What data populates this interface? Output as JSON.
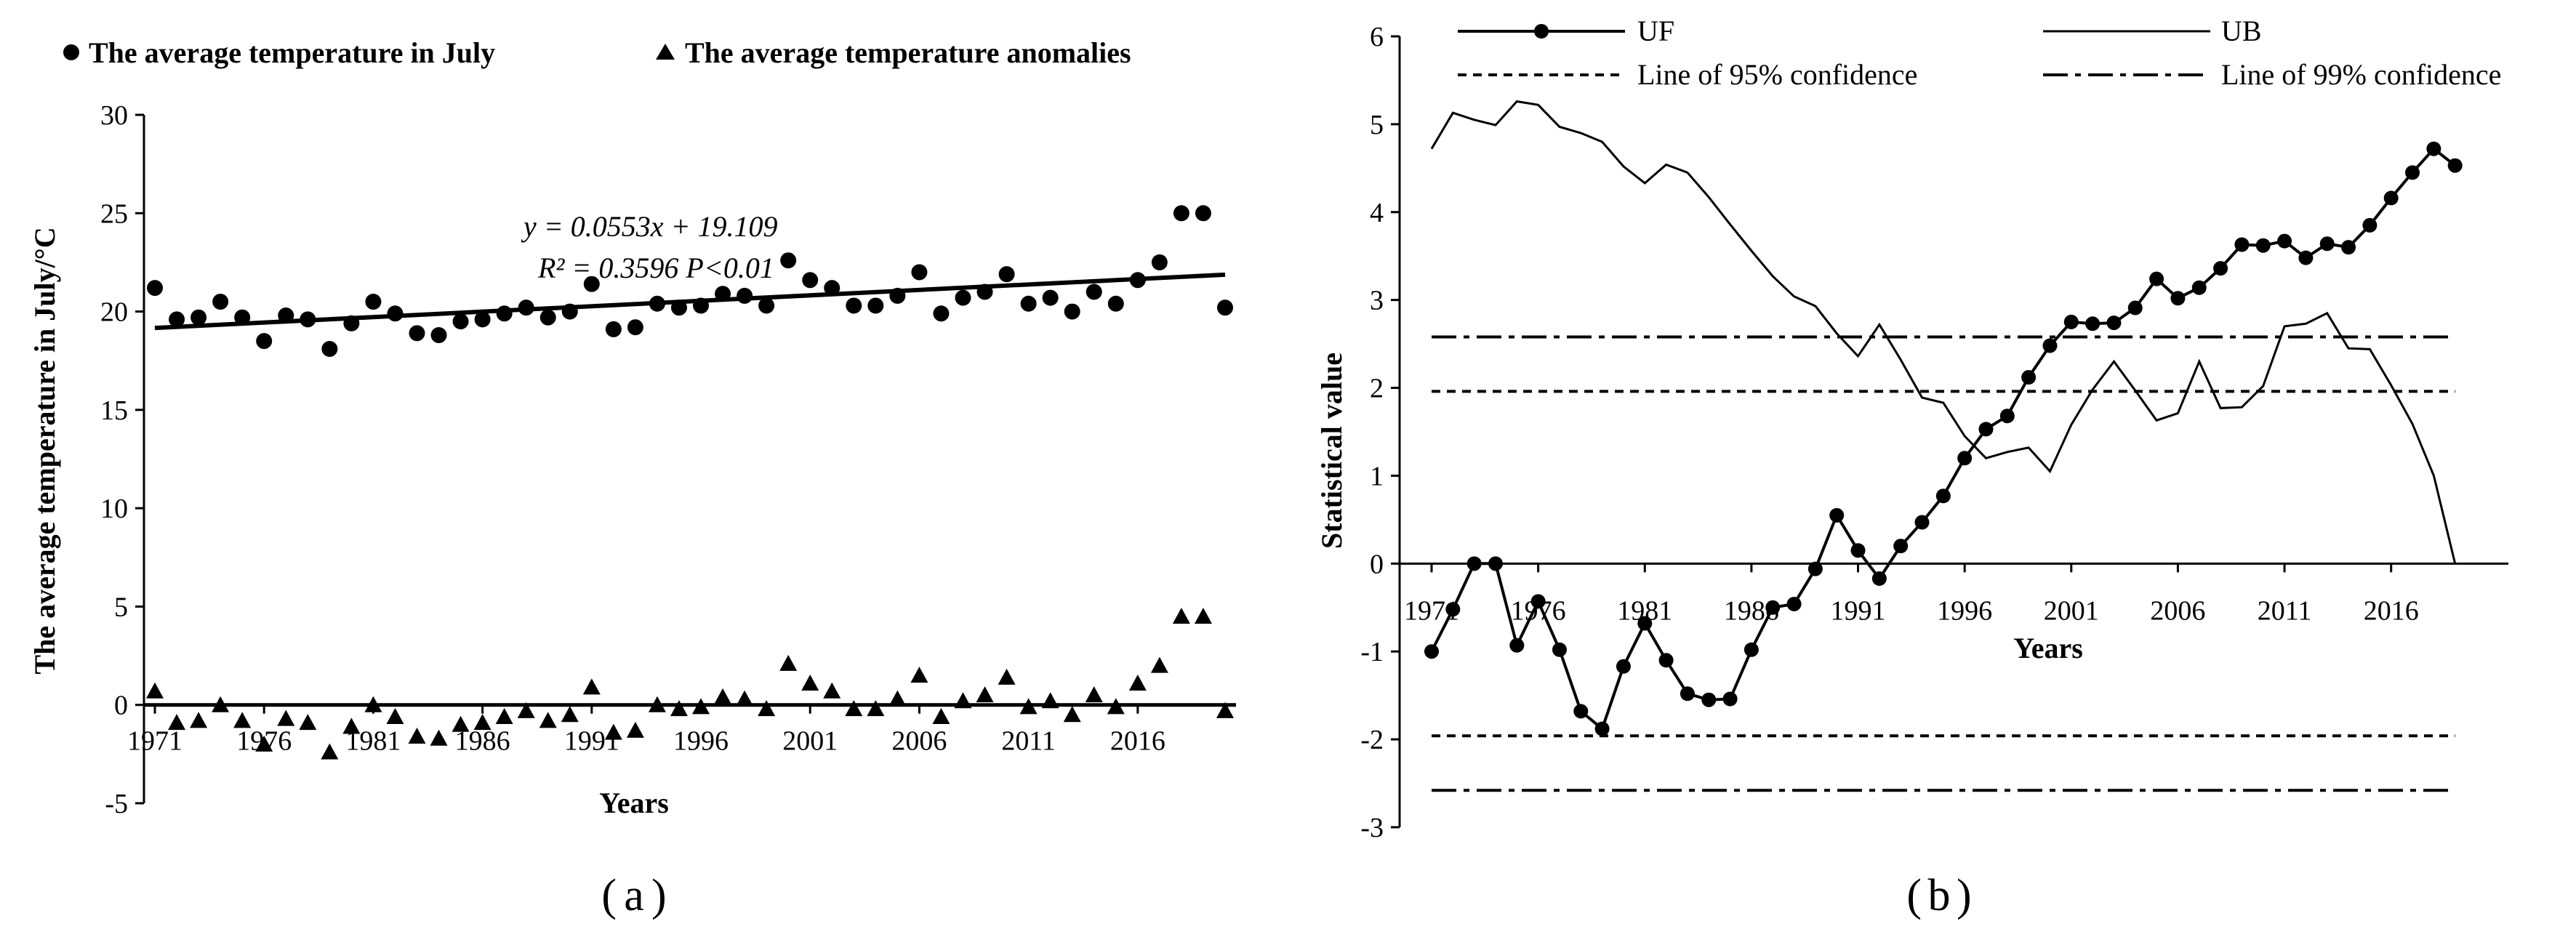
{
  "chart_data": [
    {
      "panel": "(a)",
      "panel_label_text": "a",
      "type": "scatter",
      "xlabel": "Years",
      "ylabel": "The average temperature in July/°C",
      "ylim": [
        -5,
        30
      ],
      "yticks": [
        "30",
        "25",
        "20",
        "15",
        "10",
        "5",
        "0",
        "-5"
      ],
      "ytick_values": [
        30,
        25,
        20,
        15,
        10,
        5,
        0,
        -5
      ],
      "xticks": [
        "1971",
        "1976",
        "1981",
        "1986",
        "1991",
        "1996",
        "2001",
        "2006",
        "2011",
        "2016"
      ],
      "xtick_values": [
        1971,
        1976,
        1981,
        1986,
        1991,
        1996,
        2001,
        2006,
        2011,
        2016
      ],
      "xlim": [
        1970.5,
        2020.5
      ],
      "legend": [
        "The average temperature in July",
        "The average temperature anomalies"
      ],
      "trendline": {
        "slope": 0.0553,
        "intercept": 19.109,
        "equation_text": "y = 0.0553x + 19.109",
        "r2_text": "R² = 0.3596  P<0.01"
      },
      "series": [
        {
          "name": "The average temperature in July",
          "marker": "circle",
          "x": [
            1971,
            1972,
            1973,
            1974,
            1975,
            1976,
            1977,
            1978,
            1979,
            1980,
            1981,
            1982,
            1983,
            1984,
            1985,
            1986,
            1987,
            1988,
            1989,
            1990,
            1991,
            1992,
            1993,
            1994,
            1995,
            1996,
            1997,
            1998,
            1999,
            2000,
            2001,
            2002,
            2003,
            2004,
            2005,
            2006,
            2007,
            2008,
            2009,
            2010,
            2011,
            2012,
            2013,
            2014,
            2015,
            2016,
            2017,
            2018,
            2019,
            2020
          ],
          "values": [
            21.2,
            19.6,
            19.7,
            20.5,
            19.7,
            18.5,
            19.8,
            19.6,
            18.1,
            19.4,
            20.5,
            19.9,
            18.9,
            18.8,
            19.5,
            19.6,
            19.9,
            20.2,
            19.7,
            20.0,
            21.4,
            19.1,
            19.2,
            20.4,
            20.2,
            20.3,
            20.9,
            20.8,
            20.3,
            22.6,
            21.6,
            21.2,
            20.3,
            20.3,
            20.8,
            22.0,
            19.9,
            20.7,
            21.0,
            21.9,
            20.4,
            20.7,
            20.0,
            21.0,
            20.4,
            21.6,
            22.5,
            25.0,
            25.0,
            20.2
          ]
        },
        {
          "name": "The average temperature anomalies",
          "marker": "triangle",
          "x": [
            1971,
            1972,
            1973,
            1974,
            1975,
            1976,
            1977,
            1978,
            1979,
            1980,
            1981,
            1982,
            1983,
            1984,
            1985,
            1986,
            1987,
            1988,
            1989,
            1990,
            1991,
            1992,
            1993,
            1994,
            1995,
            1996,
            1997,
            1998,
            1999,
            2000,
            2001,
            2002,
            2003,
            2004,
            2005,
            2006,
            2007,
            2008,
            2009,
            2010,
            2011,
            2012,
            2013,
            2014,
            2015,
            2016,
            2017,
            2018,
            2019,
            2020
          ],
          "values": [
            0.7,
            -0.9,
            -0.8,
            0.0,
            -0.8,
            -2.0,
            -0.7,
            -0.9,
            -2.4,
            -1.1,
            0.0,
            -0.6,
            -1.6,
            -1.7,
            -1.0,
            -0.9,
            -0.6,
            -0.3,
            -0.8,
            -0.5,
            0.9,
            -1.4,
            -1.3,
            0.0,
            -0.2,
            -0.1,
            0.4,
            0.3,
            -0.2,
            2.1,
            1.1,
            0.7,
            -0.2,
            -0.2,
            0.3,
            1.5,
            -0.6,
            0.2,
            0.5,
            1.4,
            -0.1,
            0.2,
            -0.5,
            0.5,
            -0.1,
            1.1,
            2.0,
            4.5,
            4.5,
            -0.3
          ]
        }
      ]
    },
    {
      "panel": "(b)",
      "panel_label_text": "b",
      "type": "line",
      "xlabel": "Years",
      "ylabel": "Statistical value",
      "ylim": [
        -3,
        6
      ],
      "yticks": [
        "6",
        "5",
        "4",
        "3",
        "2",
        "1",
        "0",
        "-1",
        "-2",
        "-3"
      ],
      "ytick_values": [
        6,
        5,
        4,
        3,
        2,
        1,
        0,
        -1,
        -2,
        -3
      ],
      "xticks": [
        "1971",
        "1976",
        "1981",
        "1986",
        "1991",
        "1996",
        "2001",
        "2006",
        "2011",
        "2016"
      ],
      "xtick_values": [
        1971,
        1976,
        1981,
        1986,
        1991,
        1996,
        2001,
        2006,
        2011,
        2016
      ],
      "xlim": [
        1969.5,
        2021.5
      ],
      "legend": [
        "UF",
        "UB",
        "Line of 95% confidence",
        "Line of 99% confidence"
      ],
      "confidence_lines": {
        "c95": 1.96,
        "c99": 2.58
      },
      "x": [
        1971,
        1972,
        1973,
        1974,
        1975,
        1976,
        1977,
        1978,
        1979,
        1980,
        1981,
        1982,
        1983,
        1984,
        1985,
        1986,
        1987,
        1988,
        1989,
        1990,
        1991,
        1992,
        1993,
        1994,
        1995,
        1996,
        1997,
        1998,
        1999,
        2000,
        2001,
        2002,
        2003,
        2004,
        2005,
        2006,
        2007,
        2008,
        2009,
        2010,
        2011,
        2012,
        2013,
        2014,
        2015,
        2016,
        2017,
        2018,
        2019,
        2020
      ],
      "series": [
        {
          "name": "UF",
          "marker": "circle",
          "values": [
            -1.0,
            -0.52,
            0.0,
            0.0,
            -0.93,
            -0.43,
            -0.98,
            -1.68,
            -1.88,
            -1.17,
            -0.68,
            -1.1,
            -1.48,
            -1.55,
            -1.54,
            -0.98,
            -0.5,
            -0.46,
            -0.06,
            0.55,
            0.15,
            -0.17,
            0.2,
            0.47,
            0.77,
            1.2,
            1.53,
            1.68,
            2.12,
            2.48,
            2.75,
            2.73,
            2.74,
            2.91,
            3.24,
            3.02,
            3.14,
            3.36,
            3.63,
            3.62,
            3.67,
            3.48,
            3.64,
            3.6,
            3.85,
            4.16,
            4.45,
            4.72,
            4.53,
            null
          ]
        },
        {
          "name": "UB",
          "marker": "none",
          "values": [
            4.72,
            5.13,
            5.05,
            4.99,
            5.26,
            5.22,
            4.97,
            4.9,
            4.8,
            4.52,
            4.33,
            4.54,
            4.45,
            4.17,
            3.86,
            3.56,
            3.27,
            3.04,
            2.93,
            2.62,
            2.36,
            2.72,
            2.32,
            1.89,
            1.83,
            1.45,
            1.2,
            1.27,
            1.32,
            1.05,
            1.58,
            1.98,
            2.3,
            1.97,
            1.63,
            1.71,
            2.3,
            1.77,
            1.78,
            2.02,
            2.7,
            2.73,
            2.85,
            2.45,
            2.44,
            2.03,
            1.59,
            1.0,
            0.0,
            null
          ]
        }
      ]
    }
  ]
}
